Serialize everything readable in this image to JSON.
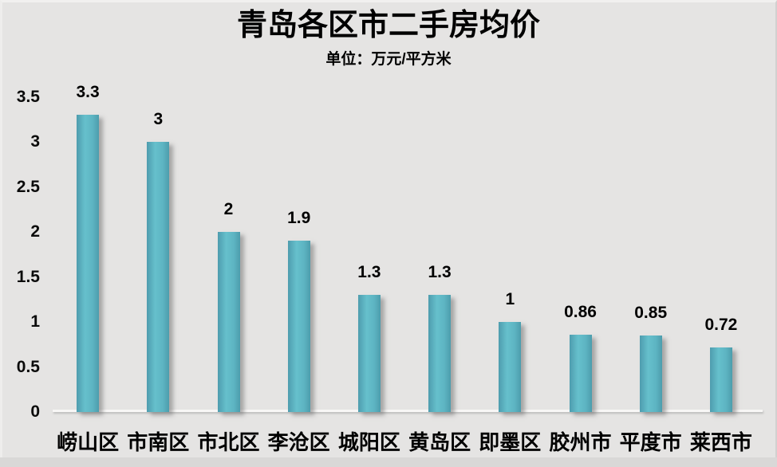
{
  "title": "青岛各区市二手房均价",
  "subtitle": "单位：万元/平方米",
  "chart_data": {
    "type": "bar",
    "title": "青岛各区市二手房均价",
    "subtitle": "单位：万元/平方米",
    "categories": [
      "崂山区",
      "市南区",
      "市北区",
      "李沧区",
      "城阳区",
      "黄岛区",
      "即墨区",
      "胶州市",
      "平度市",
      "莱西市"
    ],
    "values": [
      3.3,
      3,
      2,
      1.9,
      1.3,
      1.3,
      1,
      0.86,
      0.85,
      0.72
    ],
    "value_labels": [
      "3.3",
      "3",
      "2",
      "1.9",
      "1.3",
      "1.3",
      "1",
      "0.86",
      "0.85",
      "0.72"
    ],
    "xlabel": "",
    "ylabel": "",
    "ylim": [
      0,
      3.5
    ],
    "ytick_values": [
      0,
      0.5,
      1,
      1.5,
      2,
      2.5,
      3,
      3.5
    ],
    "ytick_labels": [
      "0",
      "0.5",
      "1",
      "1.5",
      "2",
      "2.5",
      "3",
      "3.5"
    ],
    "grid": false,
    "legend": false,
    "colors": {
      "bar_mid": "#66c0cc",
      "bar_edge": "#4e9cae",
      "background": "#e5e4e3",
      "text": "#000000",
      "axis_line": "#f8f7f6"
    }
  }
}
